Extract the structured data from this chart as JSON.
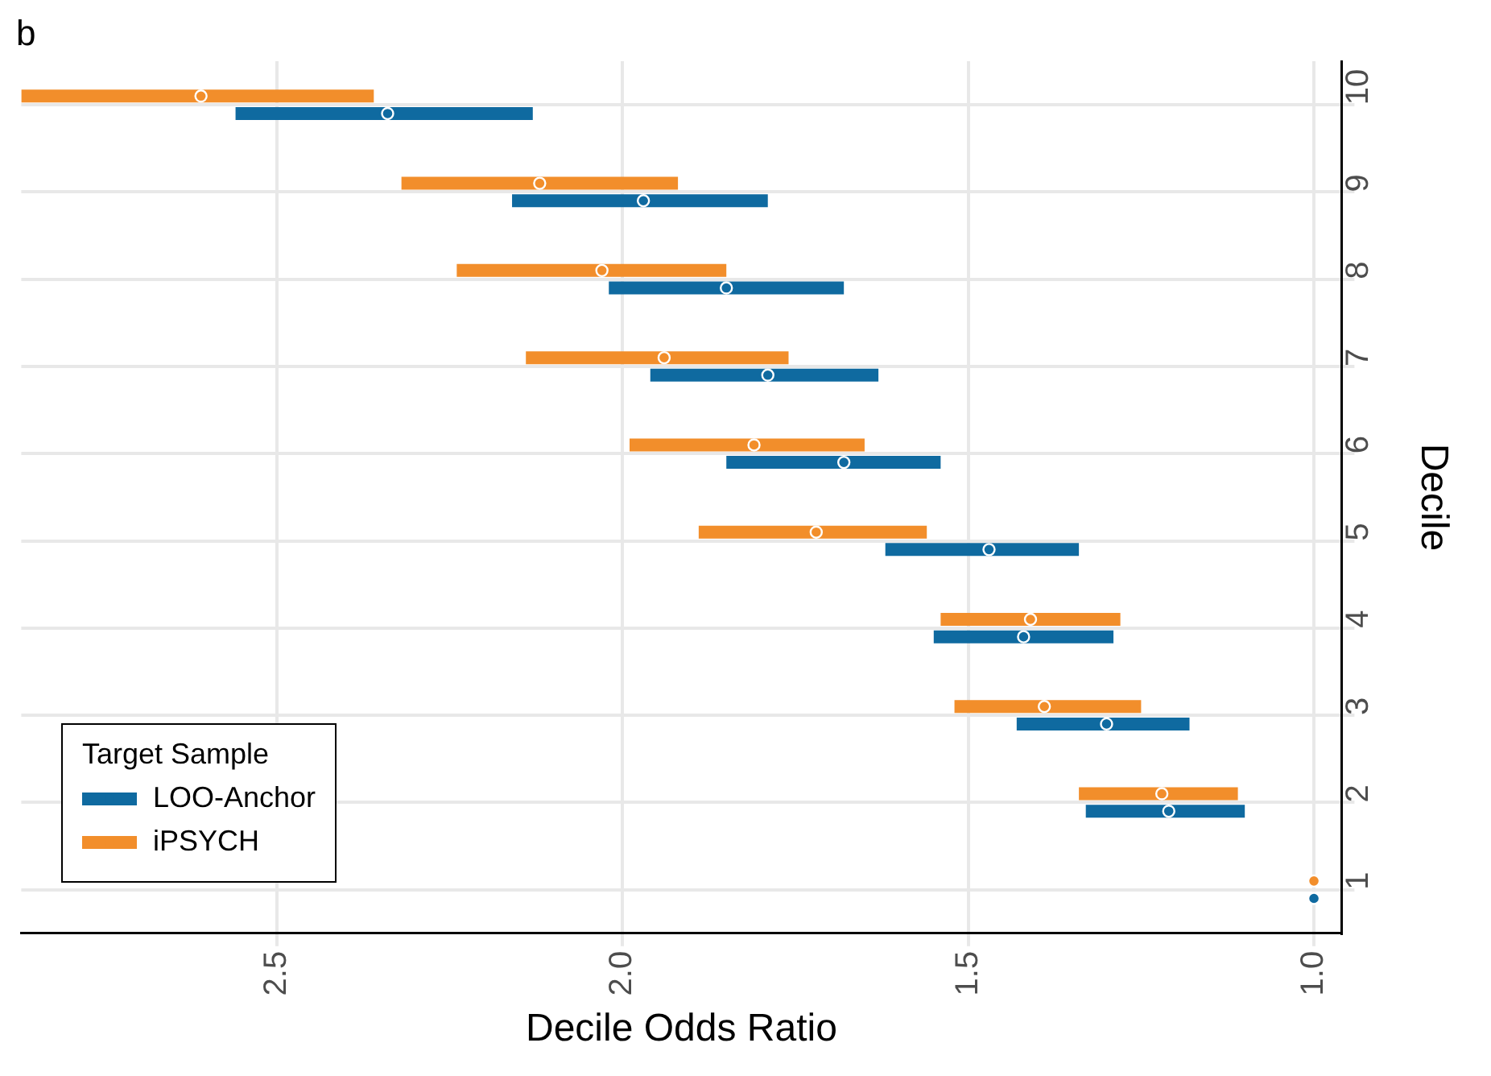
{
  "chart_data": {
    "type": "scatter",
    "orientation": "horizontal",
    "annotations": [
      "b"
    ],
    "xlabel": "Decile Odds Ratio",
    "ylabel": "Decile",
    "legend_title": "Target Sample",
    "legend": "bottom left",
    "grid": true,
    "marker": "circle",
    "categories": [
      "10",
      "9",
      "8",
      "7",
      "6",
      "5",
      "4",
      "3",
      "2",
      "1"
    ],
    "xlim": [
      2.87,
      0.96
    ],
    "xticks": [
      {
        "value": 1,
        "label": "1.0"
      },
      {
        "value": 1.5,
        "label": "1.5"
      },
      {
        "value": 2,
        "label": "2.0"
      },
      {
        "value": 2.5,
        "label": "2.5"
      }
    ],
    "series": [
      {
        "name": "LOO-Anchor",
        "color": "#0f6aa0",
        "values": [
          2.34,
          1.97,
          1.85,
          1.79,
          1.68,
          1.47,
          1.42,
          1.3,
          1.21,
          1.0
        ],
        "errors": [
          [
            2.13,
            2.56
          ],
          [
            1.79,
            2.16
          ],
          [
            1.68,
            2.02
          ],
          [
            1.63,
            1.96
          ],
          [
            1.54,
            1.85
          ],
          [
            1.34,
            1.62
          ],
          [
            1.29,
            1.55
          ],
          [
            1.18,
            1.43
          ],
          [
            1.1,
            1.33
          ],
          null
        ]
      },
      {
        "name": "iPSYCH",
        "color": "#f28e2b",
        "values": [
          2.61,
          2.12,
          2.03,
          1.94,
          1.81,
          1.72,
          1.41,
          1.39,
          1.22,
          1.0
        ],
        "errors": [
          [
            2.36,
            2.87
          ],
          [
            1.92,
            2.32
          ],
          [
            1.85,
            2.24
          ],
          [
            1.76,
            2.14
          ],
          [
            1.65,
            1.99
          ],
          [
            1.56,
            1.89
          ],
          [
            1.28,
            1.54
          ],
          [
            1.25,
            1.52
          ],
          [
            1.11,
            1.34
          ],
          null
        ]
      }
    ]
  }
}
